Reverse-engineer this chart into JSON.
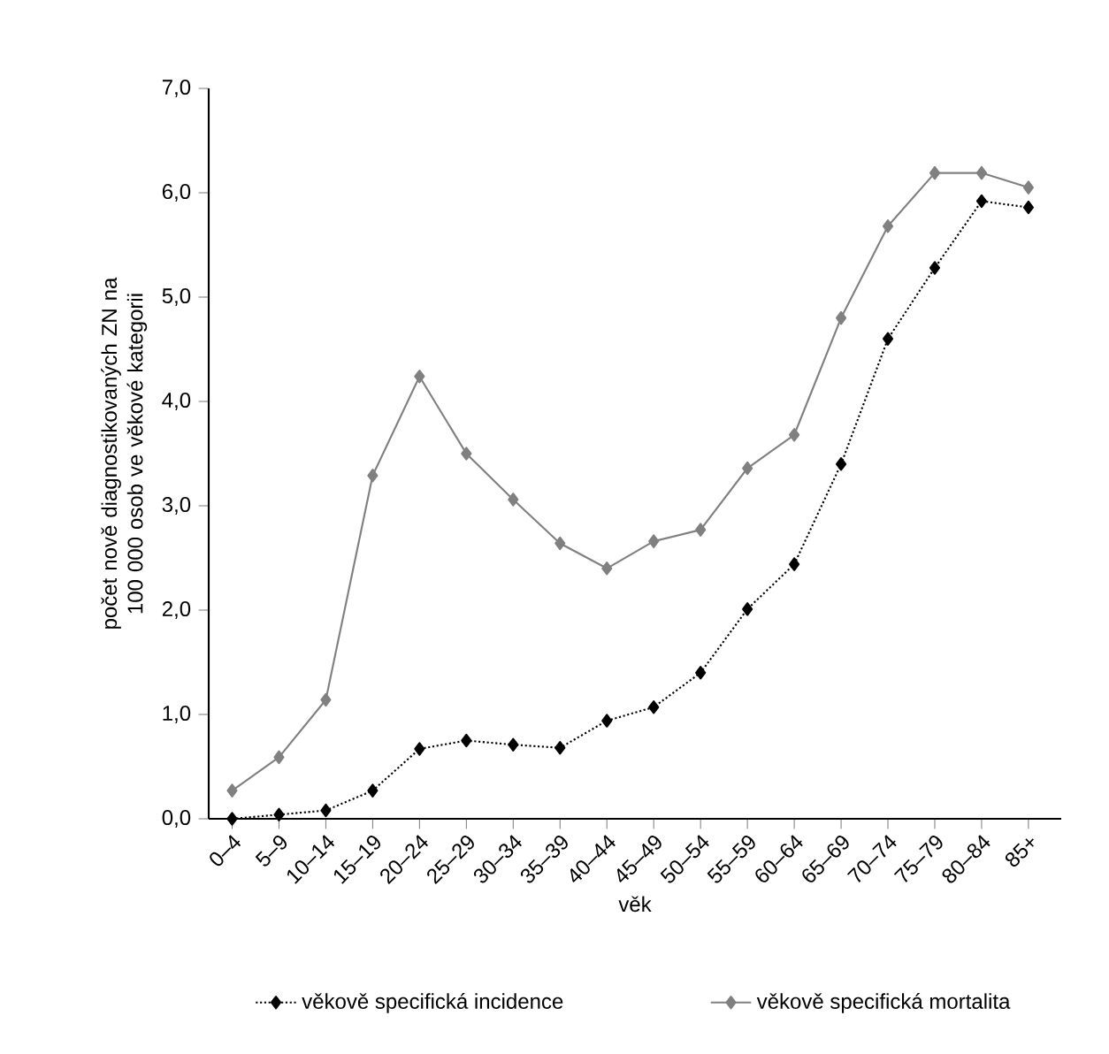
{
  "chart_data": {
    "type": "line",
    "xlabel": "věk",
    "ylabel": "počet nově diagnostikovaných ZN na 100 000 osob ve věkové kategorii",
    "categories": [
      "0–4",
      "5–9",
      "10–14",
      "15–19",
      "20–24",
      "25–29",
      "30–34",
      "35–39",
      "40–44",
      "45–49",
      "50–54",
      "55–59",
      "60–64",
      "65–69",
      "70–74",
      "75–79",
      "80–84",
      "85+"
    ],
    "series": [
      {
        "name": "věkově specifická incidence",
        "color": "#000000",
        "line_style": "dotted",
        "values": [
          0.0,
          0.04,
          0.08,
          0.27,
          0.67,
          0.75,
          0.71,
          0.68,
          0.94,
          1.07,
          1.4,
          2.01,
          2.44,
          3.4,
          4.6,
          5.28,
          5.92,
          5.86
        ]
      },
      {
        "name": "věkově specifická mortalita",
        "color": "#808080",
        "line_style": "solid",
        "values": [
          0.27,
          0.59,
          1.14,
          3.29,
          4.24,
          3.5,
          3.06,
          2.64,
          2.4,
          2.66,
          2.77,
          3.36,
          3.68,
          4.8,
          5.68,
          6.19,
          6.19,
          6.05
        ]
      }
    ],
    "ylim": [
      0,
      7
    ],
    "yticks": [
      {
        "value": 0,
        "label": "0,0"
      },
      {
        "value": 1,
        "label": "1,0"
      },
      {
        "value": 2,
        "label": "2,0"
      },
      {
        "value": 3,
        "label": "3,0"
      },
      {
        "value": 4,
        "label": "4,0"
      },
      {
        "value": 5,
        "label": "5,0"
      },
      {
        "value": 6,
        "label": "6,0"
      },
      {
        "value": 7,
        "label": "7,0"
      }
    ],
    "grid": false,
    "legend": "bottom",
    "marker": "diamond"
  }
}
